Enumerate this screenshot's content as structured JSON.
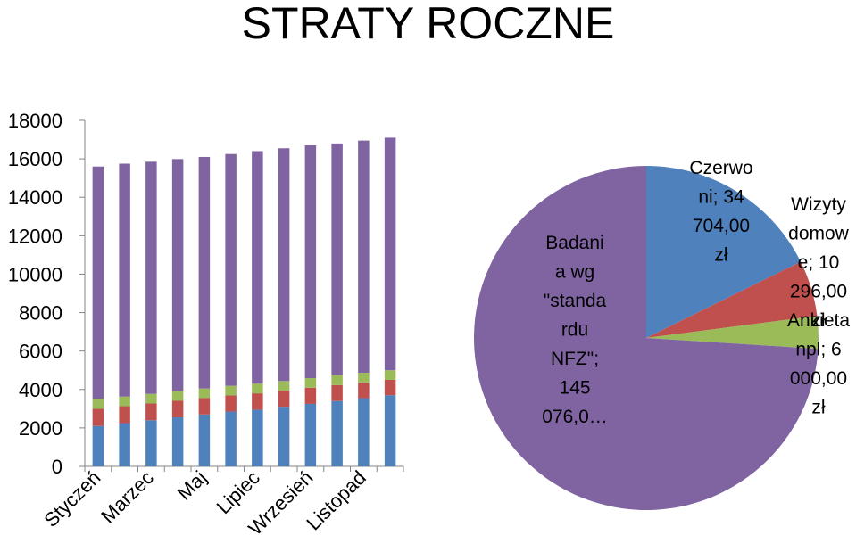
{
  "title": "STRATY ROCZNE",
  "chart_data": [
    {
      "type": "bar",
      "stacked": true,
      "categories": [
        "Styczeń",
        "",
        "Marzec",
        "",
        "Maj",
        "",
        "Lipiec",
        "",
        "Wrzesień",
        "",
        "Listopad",
        ""
      ],
      "ylim": [
        0,
        18000
      ],
      "yticks": [
        "0",
        "2000",
        "4000",
        "6000",
        "8000",
        "10000",
        "12000",
        "14000",
        "16000",
        "18000"
      ],
      "grid": false,
      "series": [
        {
          "color": "#4F81BD",
          "values": [
            2100,
            2250,
            2400,
            2550,
            2700,
            2850,
            2950,
            3100,
            3250,
            3400,
            3550,
            3700
          ]
        },
        {
          "color": "#C0504D",
          "values": [
            900,
            880,
            870,
            860,
            850,
            840,
            850,
            840,
            840,
            830,
            820,
            800
          ]
        },
        {
          "color": "#9BBB59",
          "values": [
            500,
            500,
            500,
            500,
            500,
            500,
            500,
            500,
            500,
            500,
            500,
            500
          ]
        },
        {
          "color": "#8064A2",
          "values": [
            12100,
            12120,
            12080,
            12080,
            12050,
            12060,
            12100,
            12110,
            12110,
            12070,
            12080,
            12100
          ]
        }
      ]
    },
    {
      "type": "pie",
      "slices": [
        {
          "label": "Czerwo ni; 34 704,00 zł",
          "lines": [
            "Czerwo",
            "ni; 34",
            "704,00",
            "zł"
          ],
          "value": 34704,
          "color": "#4F81BD"
        },
        {
          "label": "Wizyty domow e; 10 296,00 zł",
          "lines": [
            "Wizyty",
            "domow",
            "e; 10",
            "296,00",
            "zł"
          ],
          "value": 10296,
          "color": "#C0504D"
        },
        {
          "label": "Ankieta npl; 6 000,00 zł",
          "lines": [
            "Ankieta",
            "npl; 6",
            "000,00",
            "zł"
          ],
          "value": 6000,
          "color": "#9BBB59"
        },
        {
          "label": "Badani a wg \"standa rdu NFZ\"; 145 076,0…",
          "lines": [
            "Badani",
            "a wg",
            "\"standa",
            "rdu",
            "NFZ\";",
            "145",
            "076,0…"
          ],
          "value": 145076,
          "color": "#8064A2"
        }
      ]
    }
  ]
}
